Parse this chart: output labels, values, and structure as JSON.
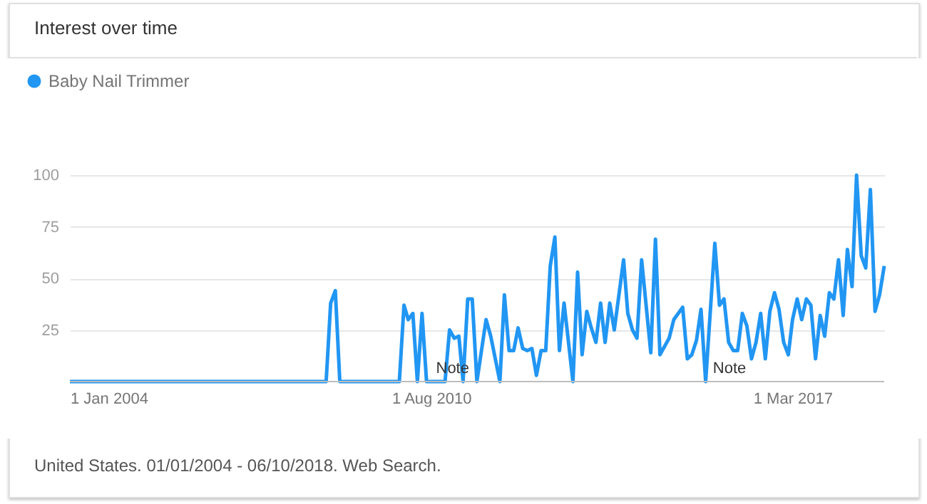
{
  "chart_data": {
    "type": "line",
    "title": "Interest over time",
    "xlim": [
      "2004-01",
      "2018-11"
    ],
    "xticks": [
      {
        "value": "2004-01",
        "label": "1 Jan 2004"
      },
      {
        "value": "2010-08",
        "label": "1 Aug 2010"
      },
      {
        "value": "2017-03",
        "label": "1 Mar 2017"
      }
    ],
    "ylim": [
      0,
      100
    ],
    "yticks": [
      25,
      50,
      75,
      100
    ],
    "grid": "y",
    "legend": "top left",
    "marker": "none",
    "series": [
      {
        "name": "Baby Nail Trimmer",
        "color": "#2196f3",
        "x": [
          "2004-01",
          "2008-09",
          "2008-10",
          "2008-11",
          "2008-12",
          "2010-01",
          "2010-02",
          "2010-03",
          "2010-04",
          "2010-05",
          "2010-06",
          "2010-07",
          "2010-11",
          "2010-12",
          "2011-01",
          "2011-02",
          "2011-03",
          "2011-04",
          "2011-05",
          "2011-06",
          "2011-08",
          "2011-09",
          "2011-11",
          "2011-12",
          "2012-01",
          "2012-02",
          "2012-03",
          "2012-04",
          "2012-05",
          "2012-06",
          "2012-07",
          "2012-08",
          "2012-09",
          "2012-10",
          "2012-11",
          "2012-12",
          "2013-01",
          "2013-03",
          "2013-04",
          "2013-05",
          "2013-06",
          "2013-07",
          "2013-08",
          "2013-09",
          "2013-10",
          "2013-11",
          "2013-12",
          "2014-02",
          "2014-03",
          "2014-04",
          "2014-05",
          "2014-06",
          "2014-08",
          "2014-09",
          "2014-10",
          "2014-12",
          "2015-01",
          "2015-03",
          "2015-04",
          "2015-05",
          "2015-06",
          "2015-07",
          "2015-08",
          "2015-10",
          "2015-11",
          "2015-12",
          "2016-01",
          "2016-02",
          "2016-03",
          "2016-04",
          "2016-05",
          "2016-06",
          "2016-07",
          "2016-08",
          "2016-09",
          "2016-10",
          "2016-11",
          "2016-12",
          "2017-01",
          "2017-02",
          "2017-03",
          "2017-04",
          "2017-05",
          "2017-06",
          "2017-07",
          "2017-08",
          "2017-09",
          "2017-10",
          "2017-11",
          "2017-12",
          "2018-01",
          "2018-02",
          "2018-03",
          "2018-04",
          "2018-05",
          "2018-06",
          "2018-07",
          "2018-08",
          "2018-09",
          "2018-10",
          "2018-11"
        ],
        "values": [
          0,
          0,
          38,
          44,
          0,
          0,
          37,
          30,
          33,
          0,
          33,
          0,
          0,
          25,
          21,
          22,
          0,
          40,
          40,
          0,
          30,
          22,
          0,
          42,
          15,
          15,
          26,
          16,
          15,
          16,
          3,
          15,
          15,
          56,
          70,
          15,
          38,
          0,
          53,
          13,
          34,
          26,
          19,
          38,
          19,
          38,
          25,
          59,
          33,
          25,
          21,
          59,
          14,
          69,
          13,
          21,
          30,
          36,
          11,
          13,
          20,
          35,
          0,
          67,
          37,
          40,
          19,
          15,
          15,
          33,
          27,
          11,
          19,
          33,
          11,
          34,
          43,
          35,
          19,
          13,
          30,
          40,
          30,
          40,
          37,
          11,
          32,
          22,
          43,
          40,
          59,
          32,
          64,
          46,
          100,
          61,
          55,
          93,
          34,
          42,
          56
        ]
      }
    ],
    "annotations": [
      "Note",
      "Note",
      "United States. 01/01/2004 - 06/10/2018. Web Search."
    ]
  }
}
